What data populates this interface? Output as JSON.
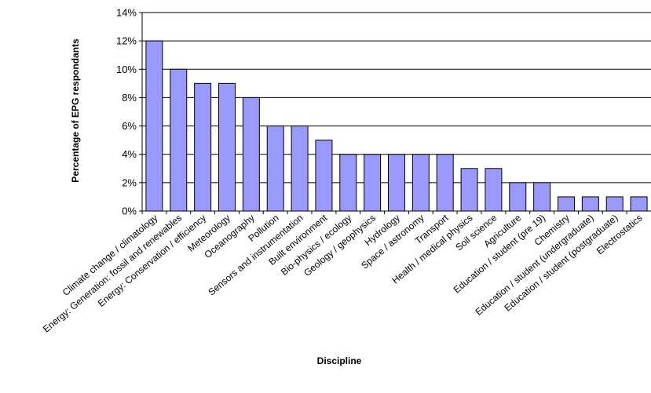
{
  "chart_data": {
    "type": "bar",
    "title": "",
    "xlabel": "Discipline",
    "ylabel": "Percentage of EPG respondants",
    "ylim": [
      0,
      14
    ],
    "yticks": [
      "0%",
      "2%",
      "4%",
      "6%",
      "8%",
      "10%",
      "12%",
      "14%"
    ],
    "grid": true,
    "legend": "none",
    "categories": [
      "Climate change / climatology",
      "Energy: Generation: fossil and renewables",
      "Energy: Conservation / efficiency",
      "Meteorology",
      "Oceanography",
      "Pollution",
      "Sensors and instrumentation",
      "Built environment",
      "Bio-physics / ecology",
      "Geology / geophysics",
      "Hydrology",
      "Space / astronomy",
      "Transport",
      "Health / medical physics",
      "Soil science",
      "Agriculture",
      "Education / student (pre 19)",
      "Chemistry",
      "Education / student (undergraduate)",
      "Education / student (postgraduate)",
      "Electrostatics"
    ],
    "values": [
      12,
      10,
      9,
      9,
      8,
      6,
      6,
      5,
      4,
      4,
      4,
      4,
      4,
      3,
      3,
      2,
      2,
      1,
      1,
      1,
      1
    ],
    "colors": {
      "bar_fill": "#9999ff",
      "bar_stroke": "#000000",
      "grid": "#000000"
    }
  }
}
